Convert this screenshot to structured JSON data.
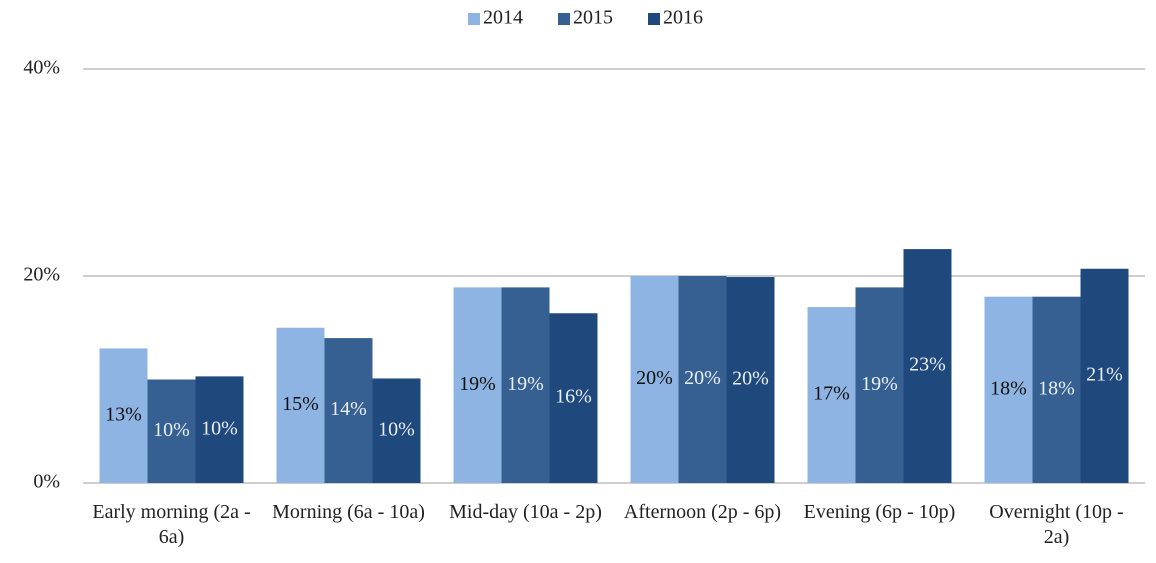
{
  "chart_data": {
    "type": "bar",
    "categories": [
      "Early morning (2a - 6a)",
      "Morning (6a - 10a)",
      "Mid-day (10a - 2p)",
      "Afternoon (2p - 6p)",
      "Evening (6p - 10p)",
      "Overnight (10p - 2a)"
    ],
    "series": [
      {
        "name": "2014",
        "color": "#8eb4e3",
        "values": [
          13,
          15,
          18.9,
          20,
          17,
          18
        ],
        "value_labels": [
          "13%",
          "15%",
          "19%",
          "20%",
          "17%",
          "18%"
        ]
      },
      {
        "name": "2015",
        "color": "#376092",
        "values": [
          10,
          14,
          18.9,
          20,
          18.9,
          18
        ],
        "value_labels": [
          "10%",
          "14%",
          "19%",
          "20%",
          "19%",
          "18%"
        ]
      },
      {
        "name": "2016",
        "color": "#1f497d",
        "values": [
          10.3,
          10.1,
          16.4,
          19.9,
          22.6,
          20.7
        ],
        "value_labels": [
          "10%",
          "10%",
          "16%",
          "20%",
          "23%",
          "21%"
        ]
      }
    ],
    "ylim": [
      0,
      40
    ],
    "yticks": [
      {
        "value": 0,
        "label": "0%"
      },
      {
        "value": 20,
        "label": "20%"
      },
      {
        "value": 40,
        "label": "40%"
      }
    ],
    "grid": true,
    "legend": "top"
  }
}
